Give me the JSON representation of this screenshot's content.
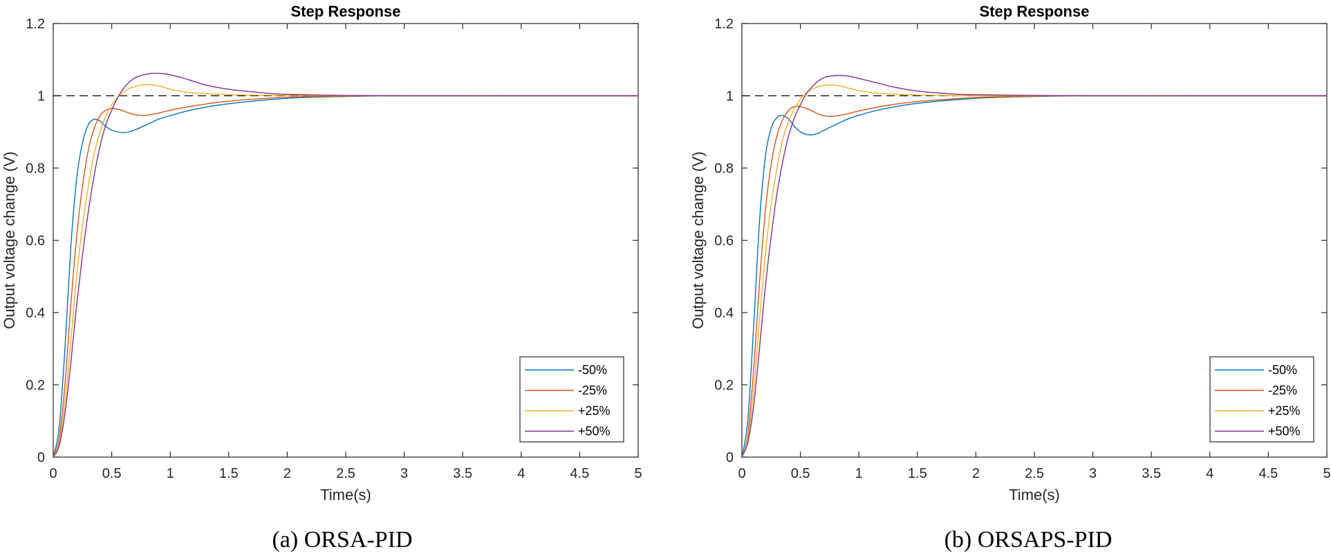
{
  "chart_data": [
    {
      "type": "line",
      "title": "Step Response",
      "xlabel": "Time(s)",
      "ylabel": "Output voltage change (V)",
      "caption": "(a) ORSA-PID",
      "xlim": [
        0,
        5
      ],
      "ylim": [
        0,
        1.2
      ],
      "xticks": [
        "0",
        "0.5",
        "1",
        "1.5",
        "2",
        "2.5",
        "3",
        "3.5",
        "4",
        "4.5",
        "5"
      ],
      "yticks": [
        "0",
        "0.2",
        "0.4",
        "0.6",
        "0.8",
        "1",
        "1.2"
      ],
      "legend_position": "bottom-right",
      "reference": {
        "name": "setpoint",
        "style": "dashed",
        "color": "#000000",
        "x": [
          0,
          5
        ],
        "y": [
          1,
          1
        ]
      },
      "series": [
        {
          "name": "-50%",
          "color": "#0072BD",
          "x": [
            0,
            0.05,
            0.1,
            0.15,
            0.2,
            0.25,
            0.3,
            0.35,
            0.4,
            0.45,
            0.5,
            0.55,
            0.6,
            0.65,
            0.7,
            0.8,
            0.9,
            1.0,
            1.2,
            1.5,
            2.0,
            2.5,
            3.0,
            4.0,
            5.0
          ],
          "y": [
            0,
            0.08,
            0.3,
            0.58,
            0.77,
            0.87,
            0.92,
            0.935,
            0.93,
            0.915,
            0.905,
            0.9,
            0.898,
            0.9,
            0.906,
            0.92,
            0.935,
            0.945,
            0.962,
            0.978,
            0.993,
            0.998,
            1.0,
            1.0,
            1.0
          ]
        },
        {
          "name": "-25%",
          "color": "#D95319",
          "x": [
            0,
            0.05,
            0.1,
            0.15,
            0.2,
            0.25,
            0.3,
            0.35,
            0.4,
            0.45,
            0.5,
            0.55,
            0.6,
            0.65,
            0.7,
            0.75,
            0.8,
            0.9,
            1.0,
            1.2,
            1.5,
            2.0,
            2.5,
            3.0,
            4.0,
            5.0
          ],
          "y": [
            0,
            0.05,
            0.2,
            0.42,
            0.61,
            0.75,
            0.85,
            0.91,
            0.945,
            0.96,
            0.965,
            0.963,
            0.958,
            0.952,
            0.948,
            0.946,
            0.946,
            0.952,
            0.96,
            0.972,
            0.985,
            0.996,
            0.999,
            1.0,
            1.0,
            1.0
          ]
        },
        {
          "name": "+25%",
          "color": "#EDB120",
          "x": [
            0,
            0.05,
            0.1,
            0.15,
            0.2,
            0.25,
            0.3,
            0.35,
            0.4,
            0.45,
            0.5,
            0.55,
            0.6,
            0.65,
            0.7,
            0.75,
            0.8,
            0.85,
            0.9,
            0.95,
            1.0,
            1.1,
            1.2,
            1.5,
            2.0,
            2.5,
            3.0,
            4.0,
            5.0
          ],
          "y": [
            0,
            0.04,
            0.15,
            0.32,
            0.5,
            0.64,
            0.75,
            0.84,
            0.9,
            0.945,
            0.975,
            0.995,
            1.01,
            1.02,
            1.026,
            1.03,
            1.031,
            1.03,
            1.027,
            1.023,
            1.018,
            1.012,
            1.008,
            1.003,
            1.001,
            1.0,
            1.0,
            1.0,
            1.0
          ]
        },
        {
          "name": "+50%",
          "color": "#7E2F8E",
          "x": [
            0,
            0.05,
            0.1,
            0.15,
            0.2,
            0.25,
            0.3,
            0.35,
            0.4,
            0.45,
            0.5,
            0.55,
            0.6,
            0.65,
            0.7,
            0.75,
            0.8,
            0.85,
            0.9,
            0.95,
            1.0,
            1.1,
            1.2,
            1.3,
            1.5,
            1.8,
            2.0,
            2.5,
            3.0,
            4.0,
            5.0
          ],
          "y": [
            0,
            0.03,
            0.12,
            0.26,
            0.42,
            0.56,
            0.68,
            0.78,
            0.86,
            0.92,
            0.96,
            0.995,
            1.02,
            1.038,
            1.05,
            1.056,
            1.06,
            1.062,
            1.062,
            1.061,
            1.058,
            1.05,
            1.04,
            1.03,
            1.018,
            1.008,
            1.004,
            1.001,
            1.0,
            1.0,
            1.0
          ]
        }
      ]
    },
    {
      "type": "line",
      "title": "Step Response",
      "xlabel": "Time(s)",
      "ylabel": "Output voltage change (V)",
      "caption": "(b) ORSAPS-PID",
      "xlim": [
        0,
        5
      ],
      "ylim": [
        0,
        1.2
      ],
      "xticks": [
        "0",
        "0.5",
        "1",
        "1.5",
        "2",
        "2.5",
        "3",
        "3.5",
        "4",
        "4.5",
        "5"
      ],
      "yticks": [
        "0",
        "0.2",
        "0.4",
        "0.6",
        "0.8",
        "1",
        "1.2"
      ],
      "legend_position": "bottom-right",
      "reference": {
        "name": "setpoint",
        "style": "dashed",
        "color": "#000000",
        "x": [
          0,
          5
        ],
        "y": [
          1,
          1
        ]
      },
      "series": [
        {
          "name": "-50%",
          "color": "#0072BD",
          "x": [
            0,
            0.05,
            0.1,
            0.15,
            0.2,
            0.25,
            0.3,
            0.35,
            0.4,
            0.45,
            0.5,
            0.55,
            0.6,
            0.65,
            0.7,
            0.8,
            0.9,
            1.0,
            1.2,
            1.5,
            2.0,
            2.5,
            3.0,
            4.0,
            5.0
          ],
          "y": [
            0,
            0.1,
            0.36,
            0.65,
            0.83,
            0.91,
            0.94,
            0.945,
            0.935,
            0.915,
            0.9,
            0.893,
            0.892,
            0.896,
            0.904,
            0.92,
            0.935,
            0.946,
            0.963,
            0.979,
            0.993,
            0.998,
            1.0,
            1.0,
            1.0
          ]
        },
        {
          "name": "-25%",
          "color": "#D95319",
          "x": [
            0,
            0.05,
            0.1,
            0.15,
            0.2,
            0.25,
            0.3,
            0.35,
            0.4,
            0.45,
            0.5,
            0.55,
            0.6,
            0.65,
            0.7,
            0.75,
            0.8,
            0.9,
            1.0,
            1.2,
            1.5,
            2.0,
            2.5,
            3.0,
            4.0,
            5.0
          ],
          "y": [
            0,
            0.06,
            0.24,
            0.48,
            0.68,
            0.81,
            0.89,
            0.935,
            0.96,
            0.97,
            0.97,
            0.965,
            0.958,
            0.95,
            0.945,
            0.943,
            0.944,
            0.95,
            0.958,
            0.971,
            0.984,
            0.995,
            0.999,
            1.0,
            1.0,
            1.0
          ]
        },
        {
          "name": "+25%",
          "color": "#EDB120",
          "x": [
            0,
            0.05,
            0.1,
            0.15,
            0.2,
            0.25,
            0.3,
            0.35,
            0.4,
            0.45,
            0.5,
            0.55,
            0.6,
            0.65,
            0.7,
            0.75,
            0.8,
            0.85,
            0.9,
            0.95,
            1.0,
            1.1,
            1.2,
            1.5,
            2.0,
            2.5,
            3.0,
            4.0,
            5.0
          ],
          "y": [
            0,
            0.05,
            0.18,
            0.38,
            0.56,
            0.7,
            0.8,
            0.88,
            0.93,
            0.965,
            0.99,
            1.008,
            1.018,
            1.025,
            1.029,
            1.03,
            1.029,
            1.026,
            1.022,
            1.018,
            1.014,
            1.009,
            1.006,
            1.002,
            1.0,
            1.0,
            1.0,
            1.0,
            1.0
          ]
        },
        {
          "name": "+50%",
          "color": "#7E2F8E",
          "x": [
            0,
            0.05,
            0.1,
            0.15,
            0.2,
            0.25,
            0.3,
            0.35,
            0.4,
            0.45,
            0.5,
            0.55,
            0.6,
            0.65,
            0.7,
            0.75,
            0.8,
            0.85,
            0.9,
            0.95,
            1.0,
            1.1,
            1.2,
            1.3,
            1.5,
            1.8,
            2.0,
            2.5,
            3.0,
            4.0,
            5.0
          ],
          "y": [
            0,
            0.04,
            0.14,
            0.3,
            0.47,
            0.61,
            0.73,
            0.82,
            0.89,
            0.94,
            0.975,
            1.005,
            1.025,
            1.04,
            1.05,
            1.054,
            1.056,
            1.056,
            1.055,
            1.052,
            1.048,
            1.04,
            1.032,
            1.024,
            1.013,
            1.005,
            1.003,
            1.001,
            1.0,
            1.0,
            1.0
          ]
        }
      ]
    }
  ]
}
